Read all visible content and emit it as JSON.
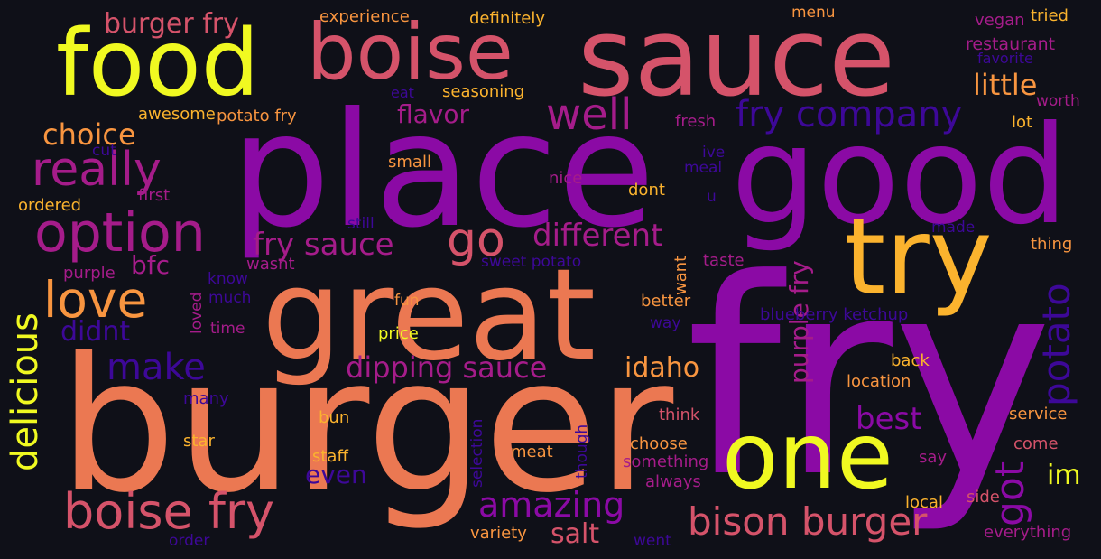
{
  "colors": {
    "background": "#0f1018",
    "deep_purple": "#8b0aa5",
    "indigo": "#3d0898",
    "dark_indigo": "#3a0b8a",
    "magenta": "#a51c8a",
    "pink": "#d5536a",
    "coral": "#eb7852",
    "orange": "#f89540",
    "amber": "#fbb32e",
    "yellow": "#f0f921"
  },
  "words": [
    {
      "text": "fry",
      "color": "#8b0aa5"
    },
    {
      "text": "burger",
      "color": "#eb7852"
    },
    {
      "text": "place",
      "color": "#8b0aa5"
    },
    {
      "text": "great",
      "color": "#eb7852"
    },
    {
      "text": "good",
      "color": "#8b0aa5"
    },
    {
      "text": "sauce",
      "color": "#d5536a"
    },
    {
      "text": "boise",
      "color": "#d5536a"
    },
    {
      "text": "food",
      "color": "#f0f921"
    },
    {
      "text": "try",
      "color": "#fbb32e"
    },
    {
      "text": "one",
      "color": "#f0f921"
    },
    {
      "text": "boise fry",
      "color": "#d5536a"
    },
    {
      "text": "option",
      "color": "#a51c8a"
    },
    {
      "text": "really",
      "color": "#a51c8a"
    },
    {
      "text": "love",
      "color": "#f89540"
    },
    {
      "text": "go",
      "color": "#d5536a"
    },
    {
      "text": "well",
      "color": "#a51c8a"
    },
    {
      "text": "fry company",
      "color": "#3d0898"
    },
    {
      "text": "bison burger",
      "color": "#d5536a"
    },
    {
      "text": "delicious",
      "color": "#f0f921"
    },
    {
      "text": "potato",
      "color": "#3d0898"
    },
    {
      "text": "amazing",
      "color": "#8b0aa5"
    },
    {
      "text": "make",
      "color": "#3d0898"
    },
    {
      "text": "different",
      "color": "#a51c8a"
    },
    {
      "text": "dipping sauce",
      "color": "#a51c8a"
    },
    {
      "text": "fry sauce",
      "color": "#a51c8a"
    },
    {
      "text": "best",
      "color": "#8b0aa5"
    },
    {
      "text": "little",
      "color": "#f89540"
    },
    {
      "text": "burger fry",
      "color": "#d5536a"
    },
    {
      "text": "choice",
      "color": "#f89540"
    },
    {
      "text": "flavor",
      "color": "#a51c8a"
    },
    {
      "text": "got",
      "color": "#8b0aa5"
    },
    {
      "text": "idaho",
      "color": "#f89540"
    },
    {
      "text": "salt",
      "color": "#d5536a"
    },
    {
      "text": "even",
      "color": "#3d0898"
    },
    {
      "text": "didnt",
      "color": "#3d0898"
    },
    {
      "text": "bfc",
      "color": "#a51c8a"
    },
    {
      "text": "purple fry",
      "color": "#a51c8a"
    },
    {
      "text": "im",
      "color": "#f0f921"
    },
    {
      "text": "experience",
      "color": "#f89540"
    },
    {
      "text": "definitely",
      "color": "#fbb32e"
    },
    {
      "text": "menu",
      "color": "#f89540"
    },
    {
      "text": "vegan",
      "color": "#a51c8a"
    },
    {
      "text": "tried",
      "color": "#fbb32e"
    },
    {
      "text": "restaurant",
      "color": "#a51c8a"
    },
    {
      "text": "favorite",
      "color": "#3d0898"
    },
    {
      "text": "eat",
      "color": "#3d0898"
    },
    {
      "text": "seasoning",
      "color": "#fbb32e"
    },
    {
      "text": "worth",
      "color": "#a51c8a"
    },
    {
      "text": "awesome",
      "color": "#fbb32e"
    },
    {
      "text": "potato fry",
      "color": "#f89540"
    },
    {
      "text": "fresh",
      "color": "#a51c8a"
    },
    {
      "text": "lot",
      "color": "#fbb32e"
    },
    {
      "text": "cut",
      "color": "#3d0898"
    },
    {
      "text": "ive",
      "color": "#3d0898"
    },
    {
      "text": "small",
      "color": "#f89540"
    },
    {
      "text": "meal",
      "color": "#3d0898"
    },
    {
      "text": "nice",
      "color": "#a51c8a"
    },
    {
      "text": "first",
      "color": "#a51c8a"
    },
    {
      "text": "dont",
      "color": "#fbb32e"
    },
    {
      "text": "u",
      "color": "#3d0898"
    },
    {
      "text": "ordered",
      "color": "#fbb32e"
    },
    {
      "text": "still",
      "color": "#3d0898"
    },
    {
      "text": "made",
      "color": "#3d0898"
    },
    {
      "text": "thing",
      "color": "#f89540"
    },
    {
      "text": "wasnt",
      "color": "#a51c8a"
    },
    {
      "text": "sweet potato",
      "color": "#3d0898"
    },
    {
      "text": "taste",
      "color": "#a51c8a"
    },
    {
      "text": "purple",
      "color": "#a51c8a"
    },
    {
      "text": "know",
      "color": "#3d0898"
    },
    {
      "text": "want",
      "color": "#f89540"
    },
    {
      "text": "much",
      "color": "#3d0898"
    },
    {
      "text": "fun",
      "color": "#f89540"
    },
    {
      "text": "better",
      "color": "#f89540"
    },
    {
      "text": "loved",
      "color": "#a51c8a"
    },
    {
      "text": "time",
      "color": "#a51c8a"
    },
    {
      "text": "price",
      "color": "#f0f921"
    },
    {
      "text": "way",
      "color": "#3d0898"
    },
    {
      "text": "blueberry ketchup",
      "color": "#3d0898"
    },
    {
      "text": "back",
      "color": "#fbb32e"
    },
    {
      "text": "location",
      "color": "#f89540"
    },
    {
      "text": "many",
      "color": "#3d0898"
    },
    {
      "text": "bun",
      "color": "#fbb32e"
    },
    {
      "text": "think",
      "color": "#d5536a"
    },
    {
      "text": "service",
      "color": "#f89540"
    },
    {
      "text": "star",
      "color": "#fbb32e"
    },
    {
      "text": "staff",
      "color": "#fbb32e"
    },
    {
      "text": "selection",
      "color": "#3d0898"
    },
    {
      "text": "meat",
      "color": "#f89540"
    },
    {
      "text": "though",
      "color": "#3d0898"
    },
    {
      "text": "choose",
      "color": "#f89540"
    },
    {
      "text": "come",
      "color": "#d5536a"
    },
    {
      "text": "something",
      "color": "#a51c8a"
    },
    {
      "text": "say",
      "color": "#a51c8a"
    },
    {
      "text": "always",
      "color": "#a51c8a"
    },
    {
      "text": "local",
      "color": "#fbb32e"
    },
    {
      "text": "side",
      "color": "#d5536a"
    },
    {
      "text": "variety",
      "color": "#f89540"
    },
    {
      "text": "everything",
      "color": "#a51c8a"
    },
    {
      "text": "order",
      "color": "#3d0898"
    },
    {
      "text": "went",
      "color": "#3d0898"
    }
  ]
}
